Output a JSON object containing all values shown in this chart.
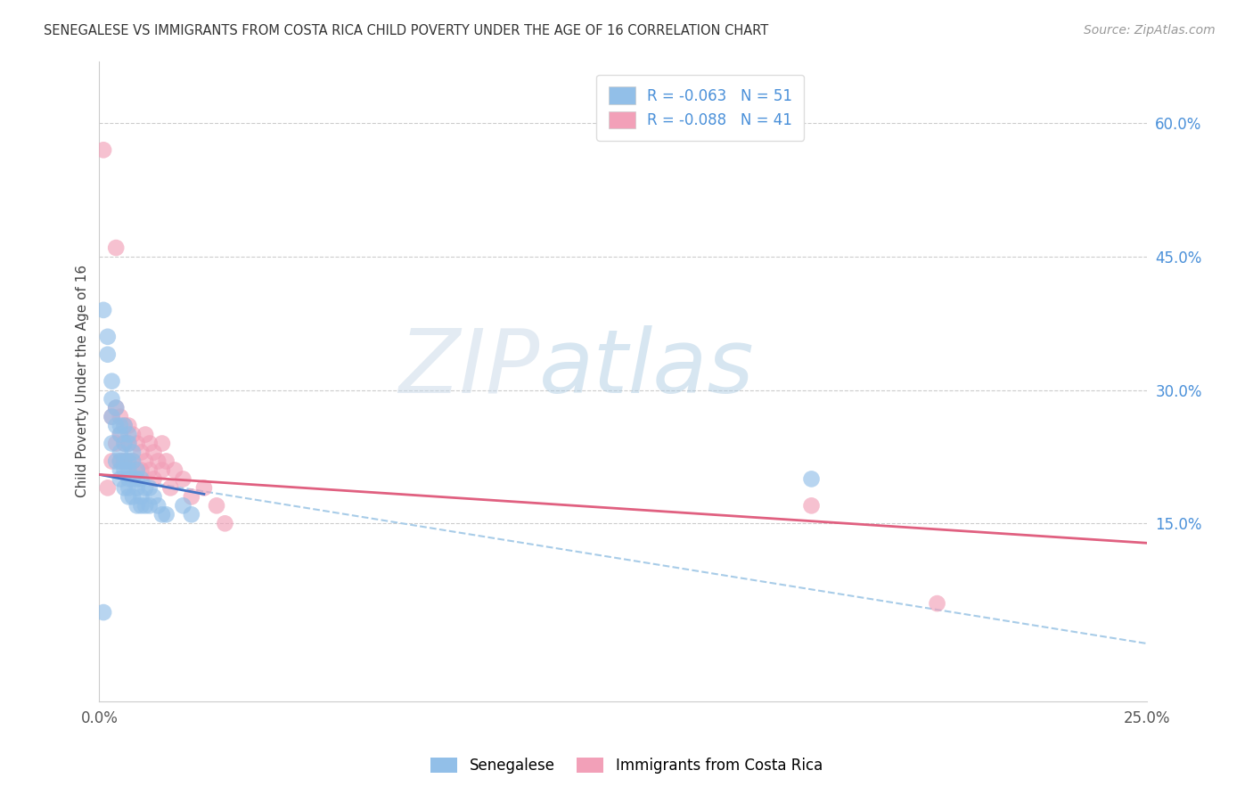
{
  "title": "SENEGALESE VS IMMIGRANTS FROM COSTA RICA CHILD POVERTY UNDER THE AGE OF 16 CORRELATION CHART",
  "source": "Source: ZipAtlas.com",
  "ylabel": "Child Poverty Under the Age of 16",
  "xlim": [
    0.0,
    0.25
  ],
  "ylim": [
    -0.05,
    0.67
  ],
  "ytick_labels_right": [
    "60.0%",
    "45.0%",
    "30.0%",
    "15.0%"
  ],
  "ytick_vals_right": [
    0.6,
    0.45,
    0.3,
    0.15
  ],
  "color_blue": "#92BFE8",
  "color_pink": "#F2A0B8",
  "color_blue_line": "#4472C4",
  "color_pink_line": "#E06080",
  "color_dashed": "#A8CCE8",
  "background_color": "#FFFFFF",
  "watermark_zip": "ZIP",
  "watermark_atlas": "atlas",
  "senegalese_x": [
    0.001,
    0.002,
    0.002,
    0.003,
    0.003,
    0.003,
    0.003,
    0.004,
    0.004,
    0.004,
    0.005,
    0.005,
    0.005,
    0.005,
    0.005,
    0.005,
    0.006,
    0.006,
    0.006,
    0.006,
    0.006,
    0.007,
    0.007,
    0.007,
    0.007,
    0.007,
    0.007,
    0.007,
    0.008,
    0.008,
    0.008,
    0.008,
    0.009,
    0.009,
    0.009,
    0.009,
    0.01,
    0.01,
    0.01,
    0.011,
    0.011,
    0.012,
    0.012,
    0.013,
    0.014,
    0.015,
    0.016,
    0.02,
    0.022,
    0.17,
    0.001
  ],
  "senegalese_y": [
    0.39,
    0.36,
    0.34,
    0.31,
    0.29,
    0.27,
    0.24,
    0.28,
    0.26,
    0.22,
    0.26,
    0.25,
    0.23,
    0.22,
    0.21,
    0.2,
    0.26,
    0.24,
    0.22,
    0.21,
    0.19,
    0.25,
    0.24,
    0.22,
    0.21,
    0.2,
    0.19,
    0.18,
    0.23,
    0.22,
    0.2,
    0.18,
    0.21,
    0.2,
    0.19,
    0.17,
    0.2,
    0.18,
    0.17,
    0.19,
    0.17,
    0.19,
    0.17,
    0.18,
    0.17,
    0.16,
    0.16,
    0.17,
    0.16,
    0.2,
    0.05
  ],
  "costarica_x": [
    0.001,
    0.002,
    0.003,
    0.003,
    0.004,
    0.004,
    0.005,
    0.005,
    0.005,
    0.006,
    0.006,
    0.006,
    0.007,
    0.007,
    0.007,
    0.008,
    0.008,
    0.009,
    0.009,
    0.01,
    0.01,
    0.011,
    0.011,
    0.012,
    0.012,
    0.013,
    0.013,
    0.014,
    0.015,
    0.015,
    0.016,
    0.017,
    0.018,
    0.02,
    0.022,
    0.025,
    0.028,
    0.03,
    0.17,
    0.2,
    0.004
  ],
  "costarica_y": [
    0.57,
    0.19,
    0.27,
    0.22,
    0.28,
    0.24,
    0.27,
    0.25,
    0.22,
    0.26,
    0.24,
    0.22,
    0.26,
    0.24,
    0.22,
    0.25,
    0.22,
    0.24,
    0.21,
    0.23,
    0.21,
    0.25,
    0.22,
    0.24,
    0.21,
    0.23,
    0.2,
    0.22,
    0.24,
    0.21,
    0.22,
    0.19,
    0.21,
    0.2,
    0.18,
    0.19,
    0.17,
    0.15,
    0.17,
    0.06,
    0.46
  ],
  "blue_line_x": [
    0.0,
    0.025
  ],
  "blue_line_y": [
    0.205,
    0.183
  ],
  "pink_line_x": [
    0.0,
    0.25
  ],
  "pink_line_y": [
    0.205,
    0.128
  ],
  "dashed_line_x": [
    0.0,
    0.25
  ],
  "dashed_line_y": [
    0.205,
    0.015
  ]
}
